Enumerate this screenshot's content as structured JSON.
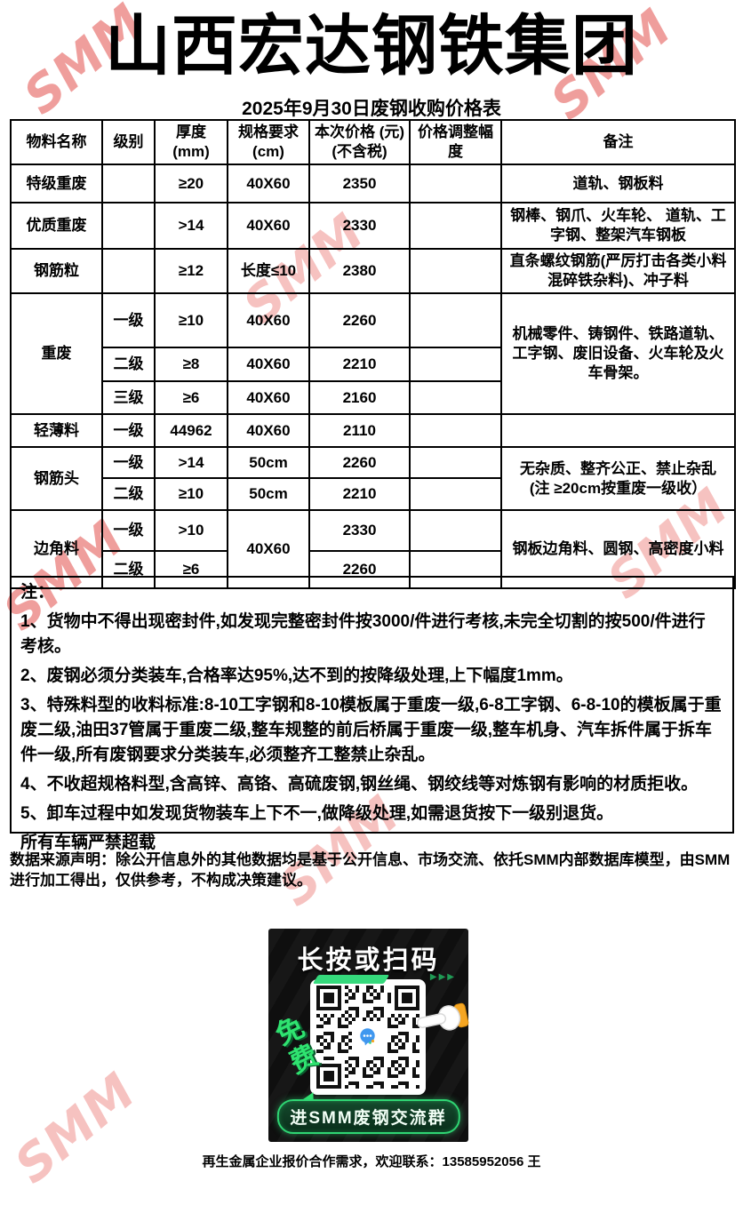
{
  "title": "山西宏达钢铁集团",
  "subtitle": "2025年9月30日废钢收购价格表",
  "watermark": "SMM",
  "table": {
    "headers": {
      "material": "物料名称",
      "grade": "级别",
      "thickness": "厚度\n(mm)",
      "spec": "规格要求\n(cm)",
      "price": "本次价格 (元)\n(不含税)",
      "adjust": "价格调整幅度",
      "remark": "备注"
    },
    "rows": [
      {
        "material": "特级重废",
        "grade": "",
        "thickness": "≥20",
        "spec": "40X60",
        "price": "2350",
        "adjust": "",
        "remark": "道轨、钢板料"
      },
      {
        "material": "优质重废",
        "grade": "",
        "thickness": ">14",
        "spec": "40X60",
        "price": "2330",
        "adjust": "",
        "remark": "钢棒、钢爪、火车轮、 道轨、工字钢、整架汽车钢板"
      },
      {
        "material": "钢筋粒",
        "grade": "",
        "thickness": "≥12",
        "spec": "长度≤10",
        "price": "2380",
        "adjust": "",
        "remark": "直条螺纹钢筋(严厉打击各类小料混碎铁杂料)、冲子料"
      },
      {
        "material": "重废",
        "grade": "一级",
        "thickness": "≥10",
        "spec": "40X60",
        "price": "2260",
        "adjust": "",
        "remark": "机械零件、铸钢件、铁路道轨、工字钢、废旧设备、火车轮及火车骨架。"
      },
      {
        "grade": "二级",
        "thickness": "≥8",
        "spec": "40X60",
        "price": "2210",
        "adjust": ""
      },
      {
        "grade": "三级",
        "thickness": "≥6",
        "spec": "40X60",
        "price": "2160",
        "adjust": ""
      },
      {
        "material": "轻薄料",
        "grade": "一级",
        "thickness": "44962",
        "spec": "40X60",
        "price": "2110",
        "adjust": "",
        "remark": ""
      },
      {
        "material": "钢筋头",
        "grade": "一级",
        "thickness": ">14",
        "spec": "50cm",
        "price": "2260",
        "adjust": "",
        "remark": "无杂质、整齐公正、禁止杂乱　(注 ≥20cm按重废一级收）"
      },
      {
        "grade": "二级",
        "thickness": "≥10",
        "spec": "50cm",
        "price": "2210",
        "adjust": ""
      },
      {
        "material": "边角料",
        "grade": "一级",
        "thickness": ">10",
        "spec": "40X60",
        "price": "2330",
        "adjust": "",
        "remark": "钢板边角料、圆钢、高密度小料"
      },
      {
        "grade": "二级",
        "thickness": "≥6",
        "price": "2260",
        "adjust": ""
      }
    ]
  },
  "notes": {
    "label": "注：",
    "items": [
      "1、货物中不得出现密封件,如发现完整密封件按3000/件进行考核,未完全切割的按500/件进行考核。",
      "2、废钢必须分类装车,合格率达95%,达不到的按降级处理,上下幅度1mm。",
      "3、特殊料型的收料标准:8-10工字钢和8-10模板属于重废一级,6-8工字钢、6-8-10的模板属于重废二级,油田37管属于重废二级,整车规整的前后桥属于重废一级,整车机身、汽车拆件属于拆车件一级,所有废钢要求分类装车,必须整齐工整禁止杂乱。",
      "4、不收超规格料型,含高锌、高铬、高硫废钢,钢丝绳、钢绞线等对炼钢有影响的材质拒收。",
      "5、卸车过程中如发现货物装车上下不一,做降级处理,如需退货按下一级别退货。"
    ],
    "extra": "所有车辆严禁超载"
  },
  "statement": "数据来源声明：除公开信息外的其他数据均是基于公开信息、市场交流、依托SMM内部数据库模型，由SMM进行加工得出，仅供参考，不构成决策建议。",
  "banner": {
    "headline": "长按或扫码",
    "dashes": "▶▶▶",
    "free_label": "免费",
    "button_label": "进SMM废钢交流群"
  },
  "footer": "再生金属企业报价合作需求，欢迎联系：13585952056 王",
  "colors": {
    "watermark_strong": "#ef9e9c",
    "watermark_light": "#f6c2c0",
    "banner_green": "#2fd573",
    "banner_background": "#141414"
  }
}
